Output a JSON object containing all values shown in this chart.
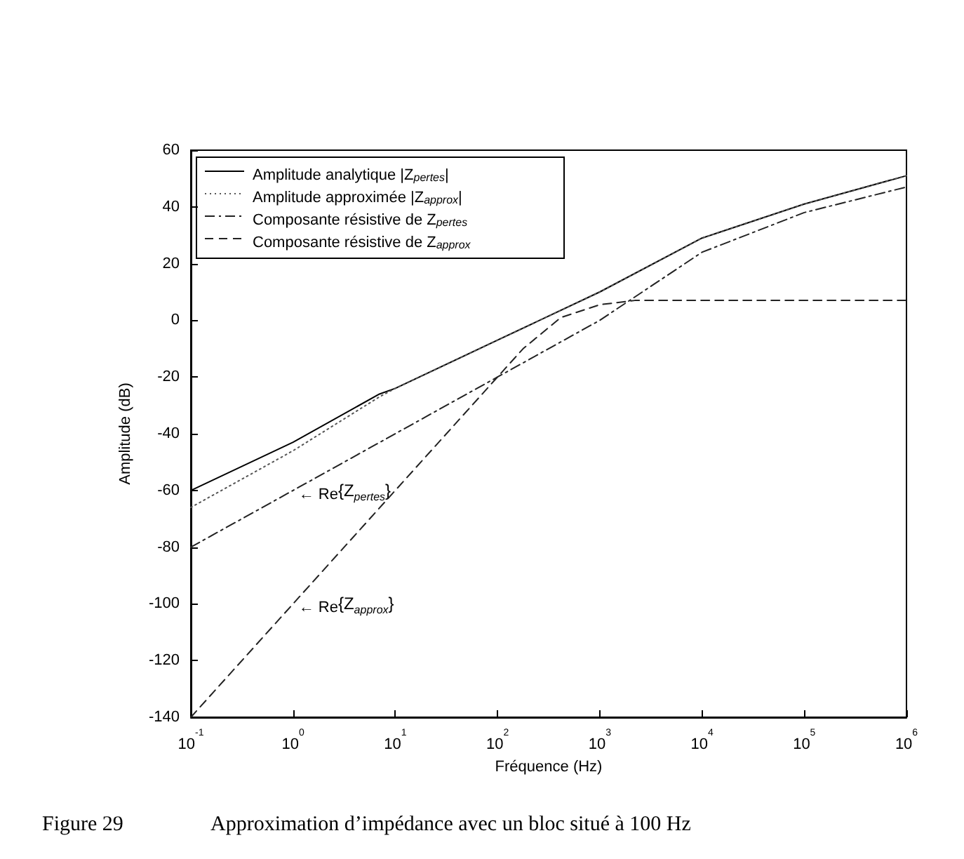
{
  "chart_data": {
    "type": "line",
    "xlabel": "Fréquence (Hz)",
    "ylabel": "Amplitude (dB)",
    "log": "x",
    "xlim": [
      0.1,
      1000000
    ],
    "xticks": [
      {
        "value": 0.1,
        "label": "10$^{-1}$"
      },
      {
        "value": 1,
        "label": "10$^{0}$"
      },
      {
        "value": 10,
        "label": "10$^{1}$"
      },
      {
        "value": 100,
        "label": "10$^{2}$"
      },
      {
        "value": 1000,
        "label": "10$^{3}$"
      },
      {
        "value": 10000,
        "label": "10$^{4}$"
      },
      {
        "value": 100000,
        "label": "10$^{5}$"
      },
      {
        "value": 1000000,
        "label": "10$^{6}$"
      }
    ],
    "ylim": [
      -140,
      60
    ],
    "yticks": [
      -140,
      -120,
      -100,
      -80,
      -60,
      -40,
      -20,
      0,
      20,
      40,
      60
    ],
    "grid": false,
    "legend": "top left",
    "marker": "none",
    "series": [
      {
        "name": "Amplitude analytique |Z$_{pertes}$|",
        "color": "#000000",
        "line_style": "solid",
        "x": [
          0.1,
          1,
          7,
          10,
          100,
          1000,
          10000,
          100000,
          1000000
        ],
        "values": [
          -60,
          -43,
          -26,
          -24,
          -7,
          10,
          29,
          41,
          51
        ]
      },
      {
        "name": "Amplitude approximée |Z$_{approx}$|",
        "color": "#555555",
        "line_style": "dotted",
        "x": [
          0.1,
          1,
          7,
          10,
          100,
          1000,
          10000,
          100000,
          1000000
        ],
        "values": [
          -66,
          -46,
          -27,
          -24,
          -7,
          10,
          29,
          41,
          51
        ]
      },
      {
        "name": "Composante résistive de Z$_{pertes}$",
        "color": "#222222",
        "line_style": "dashdot",
        "x": [
          0.1,
          1,
          10,
          63,
          100,
          1000,
          10000,
          100000,
          1000000
        ],
        "values": [
          -80,
          -60,
          -40,
          -24,
          -20,
          0,
          24,
          38,
          47
        ]
      },
      {
        "name": "Composante résistive de Z$_{approx}$",
        "color": "#222222",
        "line_style": "dashed",
        "x": [
          0.1,
          1,
          10,
          100,
          178,
          417,
          1000,
          2200,
          1000000
        ],
        "values": [
          -140,
          -100,
          -60,
          -20,
          -10,
          1,
          5.5,
          7,
          7
        ]
      }
    ],
    "annotations": [
      {
        "text": "← Re{Z$_{pertes}$}",
        "x": 1,
        "y": -60
      },
      {
        "text": "← Re{Z$_{approx}$}",
        "x": 1,
        "y": -100
      },
      "Figure 29",
      "Approximation d’impédance avec un bloc situé à 100 Hz"
    ]
  }
}
